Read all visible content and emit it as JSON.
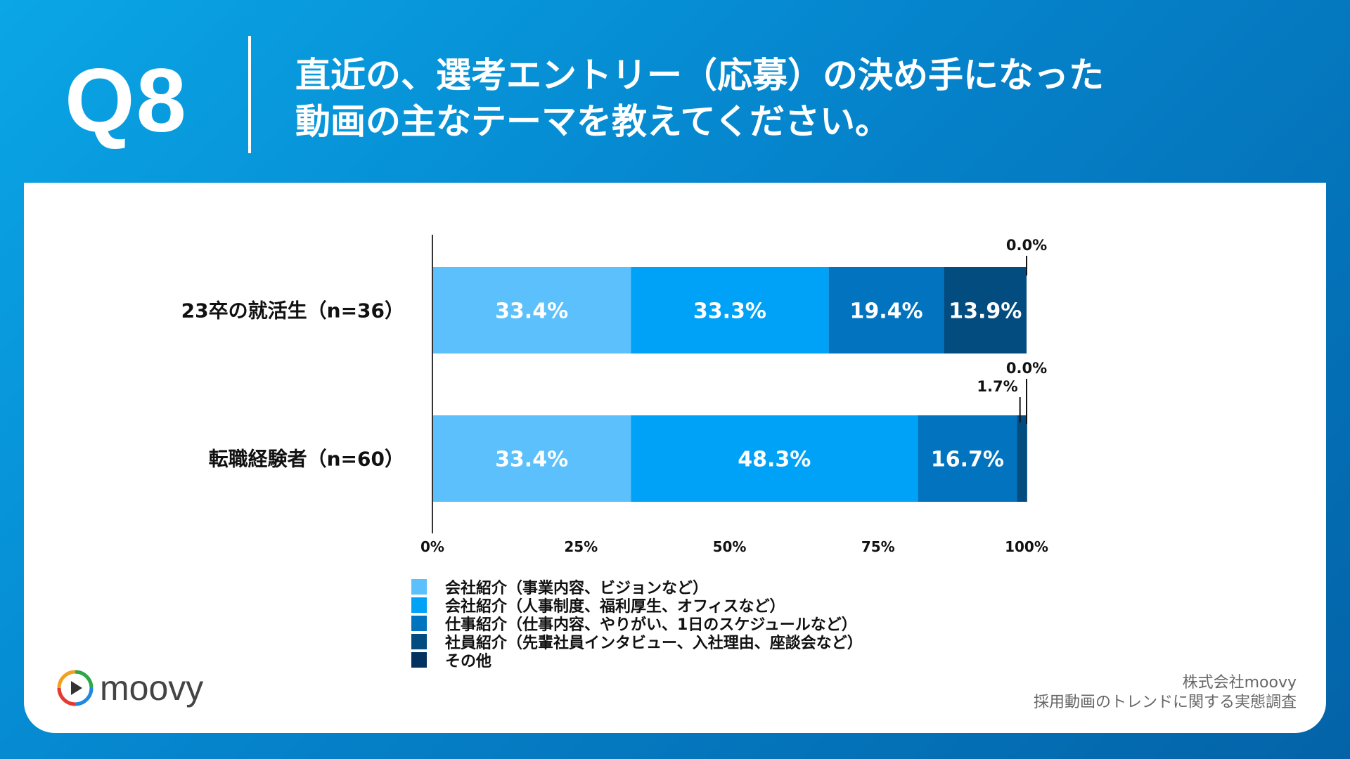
{
  "header": {
    "q_number": "Q8",
    "title_line1": "直近の、選考エントリー（応募）の決め手になった",
    "title_line2": "動画の主なテーマを教えてください。"
  },
  "chart_data": {
    "type": "bar",
    "orientation": "horizontal-stacked-100",
    "categories": [
      "23卒の就活生（n=36）",
      "転職経験者（n=60）"
    ],
    "series": [
      {
        "name": "会社紹介（事業内容、ビジョンなど）",
        "color": "#5bc0fb",
        "values": [
          33.4,
          33.4
        ]
      },
      {
        "name": "会社紹介（人事制度、福利厚生、オフィスなど）",
        "color": "#00a2f7",
        "values": [
          33.3,
          48.3
        ]
      },
      {
        "name": "仕事紹介（仕事内容、やりがい、1日のスケジュールなど）",
        "color": "#0274bf",
        "values": [
          19.4,
          16.7
        ]
      },
      {
        "name": "社員紹介（先輩社員インタビュー、入社理由、座談会など）",
        "color": "#034c80",
        "values": [
          13.9,
          1.7
        ]
      },
      {
        "name": "その他",
        "color": "#03325e",
        "values": [
          0.0,
          0.0
        ]
      }
    ],
    "value_labels": [
      [
        "33.4%",
        "33.3%",
        "19.4%",
        "13.9%",
        "0.0%"
      ],
      [
        "33.4%",
        "48.3%",
        "16.7%",
        "1.7%",
        "0.0%"
      ]
    ],
    "xticks": [
      "0%",
      "25%",
      "50%",
      "75%",
      "100%"
    ],
    "xlim": [
      0,
      100
    ],
    "legend": "bottom"
  },
  "logo": {
    "text": "moovy"
  },
  "footer": {
    "line1": "株式会社moovy",
    "line2": "採用動画のトレンドに関する実態調査"
  }
}
